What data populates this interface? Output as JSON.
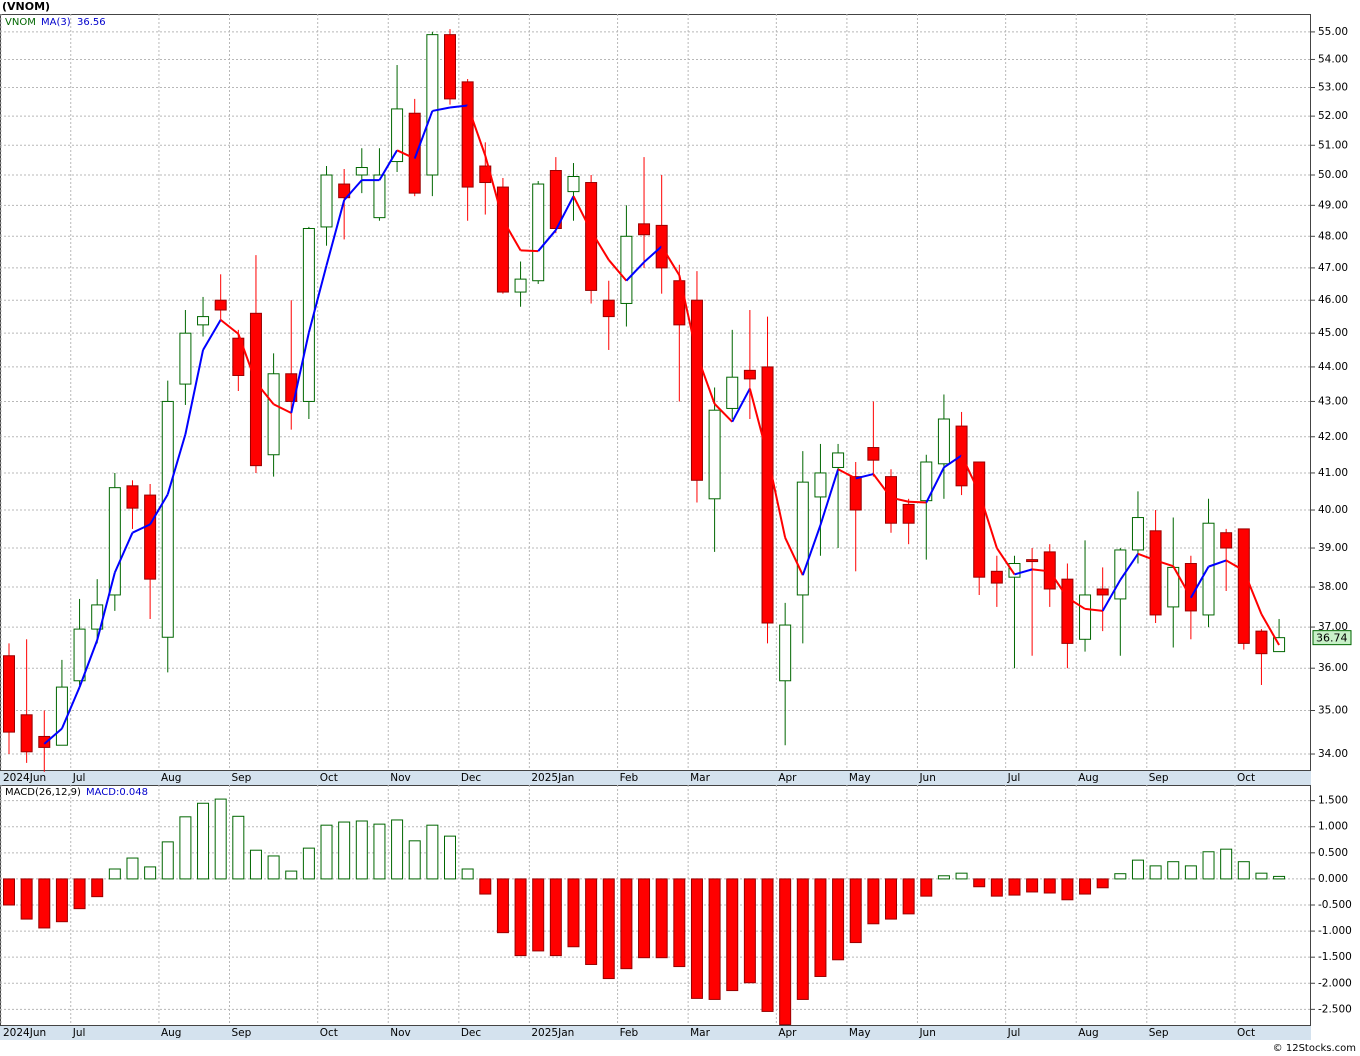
{
  "chart_data": [
    {
      "type": "candlestick",
      "title": "(VNOM)",
      "symbol": "VNOM",
      "categories": [
        "2024Jun",
        null,
        null,
        null,
        "Jul",
        null,
        null,
        null,
        null,
        "Aug",
        null,
        null,
        null,
        "Sep",
        null,
        null,
        null,
        null,
        "Oct",
        null,
        null,
        null,
        "Nov",
        null,
        null,
        null,
        "Dec",
        null,
        null,
        null,
        "2025Jan",
        null,
        null,
        null,
        null,
        "Feb",
        null,
        null,
        null,
        "Mar",
        null,
        null,
        null,
        null,
        "Apr",
        null,
        null,
        null,
        "May",
        null,
        null,
        null,
        "Jun",
        null,
        null,
        null,
        null,
        "Jul",
        null,
        null,
        null,
        "Aug",
        null,
        null,
        null,
        "Sep",
        null,
        null,
        null,
        null,
        "Oct",
        null,
        null
      ],
      "open": [
        36.3,
        34.9,
        34.4,
        34.2,
        35.7,
        36.95,
        37.8,
        40.65,
        40.4,
        36.75,
        43.5,
        45.25,
        46.0,
        44.85,
        45.6,
        41.5,
        43.8,
        43.0,
        48.3,
        49.7,
        50.0,
        48.6,
        50.45,
        52.1,
        50.0,
        54.9,
        53.2,
        50.3,
        49.6,
        46.25,
        46.6,
        50.15,
        49.45,
        49.75,
        46.0,
        45.9,
        48.4,
        48.35,
        46.6,
        46.0,
        40.3,
        42.8,
        43.9,
        44.0,
        35.7,
        37.8,
        40.35,
        41.15,
        40.9,
        41.7,
        40.9,
        40.15,
        40.25,
        41.25,
        42.3,
        41.3,
        38.4,
        38.25,
        38.7,
        38.9,
        38.2,
        36.7,
        37.95,
        37.7,
        38.95,
        39.45,
        37.5,
        38.6,
        37.3,
        39.4,
        39.5,
        36.9,
        36.4
      ],
      "high": [
        36.6,
        36.7,
        35.0,
        36.2,
        37.7,
        38.2,
        41.0,
        40.8,
        40.7,
        43.6,
        45.7,
        46.1,
        46.8,
        45.1,
        47.4,
        44.4,
        46.0,
        48.3,
        50.3,
        50.2,
        50.9,
        50.9,
        53.8,
        52.6,
        55.0,
        55.1,
        53.3,
        51.1,
        49.9,
        47.2,
        49.8,
        50.6,
        50.4,
        50.0,
        46.6,
        49.0,
        50.6,
        50.0,
        47.1,
        46.9,
        43.4,
        45.1,
        45.7,
        45.5,
        37.6,
        41.6,
        41.8,
        41.8,
        41.3,
        43.0,
        41.1,
        40.3,
        41.5,
        43.2,
        42.7,
        41.3,
        38.8,
        38.8,
        39.0,
        39.1,
        38.6,
        39.2,
        38.5,
        39.0,
        40.5,
        40.0,
        39.8,
        38.8,
        40.3,
        39.5,
        39.5,
        36.95,
        37.2
      ],
      "low": [
        34.0,
        33.8,
        33.6,
        34.2,
        35.6,
        36.6,
        37.4,
        39.5,
        37.2,
        35.9,
        42.9,
        44.9,
        45.4,
        43.3,
        41.0,
        40.9,
        42.2,
        42.5,
        47.7,
        47.9,
        49.4,
        48.5,
        50.1,
        49.3,
        49.3,
        52.4,
        48.5,
        48.7,
        46.2,
        45.8,
        46.5,
        48.1,
        48.5,
        45.9,
        44.5,
        45.2,
        47.0,
        46.2,
        43.0,
        40.2,
        38.9,
        42.5,
        42.5,
        36.6,
        34.2,
        36.6,
        38.8,
        39.0,
        38.4,
        40.9,
        39.4,
        39.1,
        38.7,
        40.3,
        40.4,
        37.8,
        37.5,
        36.0,
        36.3,
        37.5,
        36.0,
        36.4,
        36.9,
        36.3,
        38.6,
        37.1,
        36.5,
        36.7,
        37.0,
        37.9,
        36.45,
        35.6,
        36.4
      ],
      "close": [
        34.5,
        34.05,
        34.15,
        35.55,
        36.95,
        37.55,
        40.6,
        40.05,
        38.2,
        43.0,
        45.0,
        45.5,
        45.7,
        43.75,
        41.2,
        43.8,
        43.0,
        48.25,
        50.0,
        49.25,
        50.25,
        50.0,
        52.25,
        49.4,
        54.9,
        52.6,
        49.6,
        49.75,
        46.25,
        46.65,
        49.7,
        48.25,
        49.95,
        46.3,
        45.5,
        48.0,
        48.05,
        47.0,
        45.25,
        40.8,
        42.75,
        43.7,
        43.65,
        37.1,
        37.05,
        40.75,
        41.0,
        41.55,
        40.0,
        41.35,
        39.65,
        39.65,
        41.3,
        42.5,
        40.65,
        38.25,
        38.1,
        38.6,
        38.65,
        37.95,
        36.6,
        37.8,
        37.8,
        38.95,
        39.8,
        37.3,
        38.5,
        37.4,
        39.65,
        39.0,
        36.6,
        36.35,
        36.74
      ],
      "up_color": "#006600",
      "down_color": "#ff0000",
      "series": [
        {
          "name": "MA(3)",
          "color": "#0000ff",
          "down_color": "#ff0000",
          "values": [
            null,
            null,
            34.23,
            34.58,
            35.55,
            36.68,
            38.37,
            39.4,
            39.62,
            40.42,
            42.07,
            44.5,
            45.4,
            44.98,
            43.55,
            42.92,
            42.67,
            45.02,
            47.08,
            49.17,
            49.83,
            49.83,
            50.83,
            50.55,
            52.18,
            52.3,
            52.37,
            50.65,
            48.53,
            47.55,
            47.53,
            48.2,
            49.3,
            48.17,
            47.25,
            46.6,
            47.18,
            47.68,
            46.77,
            44.35,
            42.93,
            42.42,
            43.37,
            41.48,
            39.27,
            38.3,
            39.6,
            41.1,
            40.85,
            40.97,
            40.33,
            40.22,
            40.2,
            41.15,
            41.48,
            40.47,
            39.0,
            38.32,
            38.45,
            38.4,
            37.73,
            37.45,
            37.4,
            38.18,
            38.85,
            38.68,
            38.53,
            37.73,
            38.52,
            38.68,
            38.42,
            37.32,
            36.56
          ]
        }
      ],
      "ylim": [
        33.64,
        55.66
      ],
      "log_scale": true,
      "grid": true,
      "yticks": [
        {
          "value": 34,
          "label": "34.00"
        },
        {
          "value": 35,
          "label": "35.00"
        },
        {
          "value": 36,
          "label": "36.00"
        },
        {
          "value": 37,
          "label": "37.00"
        },
        {
          "value": 38,
          "label": "38.00"
        },
        {
          "value": 39,
          "label": "39.00"
        },
        {
          "value": 40,
          "label": "40.00"
        },
        {
          "value": 41,
          "label": "41.00"
        },
        {
          "value": 42,
          "label": "42.00"
        },
        {
          "value": 43,
          "label": "43.00"
        },
        {
          "value": 44,
          "label": "44.00"
        },
        {
          "value": 45,
          "label": "45.00"
        },
        {
          "value": 46,
          "label": "46.00"
        },
        {
          "value": 47,
          "label": "47.00"
        },
        {
          "value": 48,
          "label": "48.00"
        },
        {
          "value": 49,
          "label": "49.00"
        },
        {
          "value": 50,
          "label": "50.00"
        },
        {
          "value": 51,
          "label": "51.00"
        },
        {
          "value": 52,
          "label": "52.00"
        },
        {
          "value": 53,
          "label": "53.00"
        },
        {
          "value": 54,
          "label": "54.00"
        },
        {
          "value": 55,
          "label": "55.00"
        }
      ]
    },
    {
      "type": "bar",
      "title": "MACD(26,12,9)",
      "value_label": "MACD:0.048",
      "values": [
        -0.5,
        -0.77,
        -0.94,
        -0.82,
        -0.57,
        -0.34,
        0.19,
        0.4,
        0.23,
        0.71,
        1.19,
        1.45,
        1.53,
        1.2,
        0.55,
        0.44,
        0.15,
        0.59,
        1.03,
        1.09,
        1.11,
        1.05,
        1.13,
        0.73,
        1.03,
        0.82,
        0.19,
        -0.29,
        -1.03,
        -1.47,
        -1.38,
        -1.47,
        -1.3,
        -1.64,
        -1.91,
        -1.72,
        -1.51,
        -1.51,
        -1.68,
        -2.29,
        -2.31,
        -2.14,
        -1.99,
        -2.54,
        -2.79,
        -2.31,
        -1.87,
        -1.55,
        -1.22,
        -0.86,
        -0.77,
        -0.67,
        -0.33,
        0.06,
        0.11,
        -0.15,
        -0.33,
        -0.31,
        -0.25,
        -0.27,
        -0.4,
        -0.29,
        -0.17,
        0.1,
        0.36,
        0.25,
        0.33,
        0.25,
        0.52,
        0.57,
        0.33,
        0.11,
        0.048
      ],
      "positive_color": "#006600",
      "negative_color": "#ff0000",
      "ylim": [
        -2.8,
        1.8
      ],
      "grid": true,
      "yticks": [
        {
          "value": -2.5,
          "label": "-2.500"
        },
        {
          "value": -2,
          "label": "-2.000"
        },
        {
          "value": -1.5,
          "label": "-1.500"
        },
        {
          "value": -1,
          "label": "-1.000"
        },
        {
          "value": -0.5,
          "label": "-0.500"
        },
        {
          "value": 0,
          "label": "0.000"
        },
        {
          "value": 0.5,
          "label": "0.500"
        },
        {
          "value": 1,
          "label": "1.000"
        },
        {
          "value": 1.5,
          "label": "1.500"
        }
      ]
    }
  ],
  "footer": "© 12Stocks.com"
}
